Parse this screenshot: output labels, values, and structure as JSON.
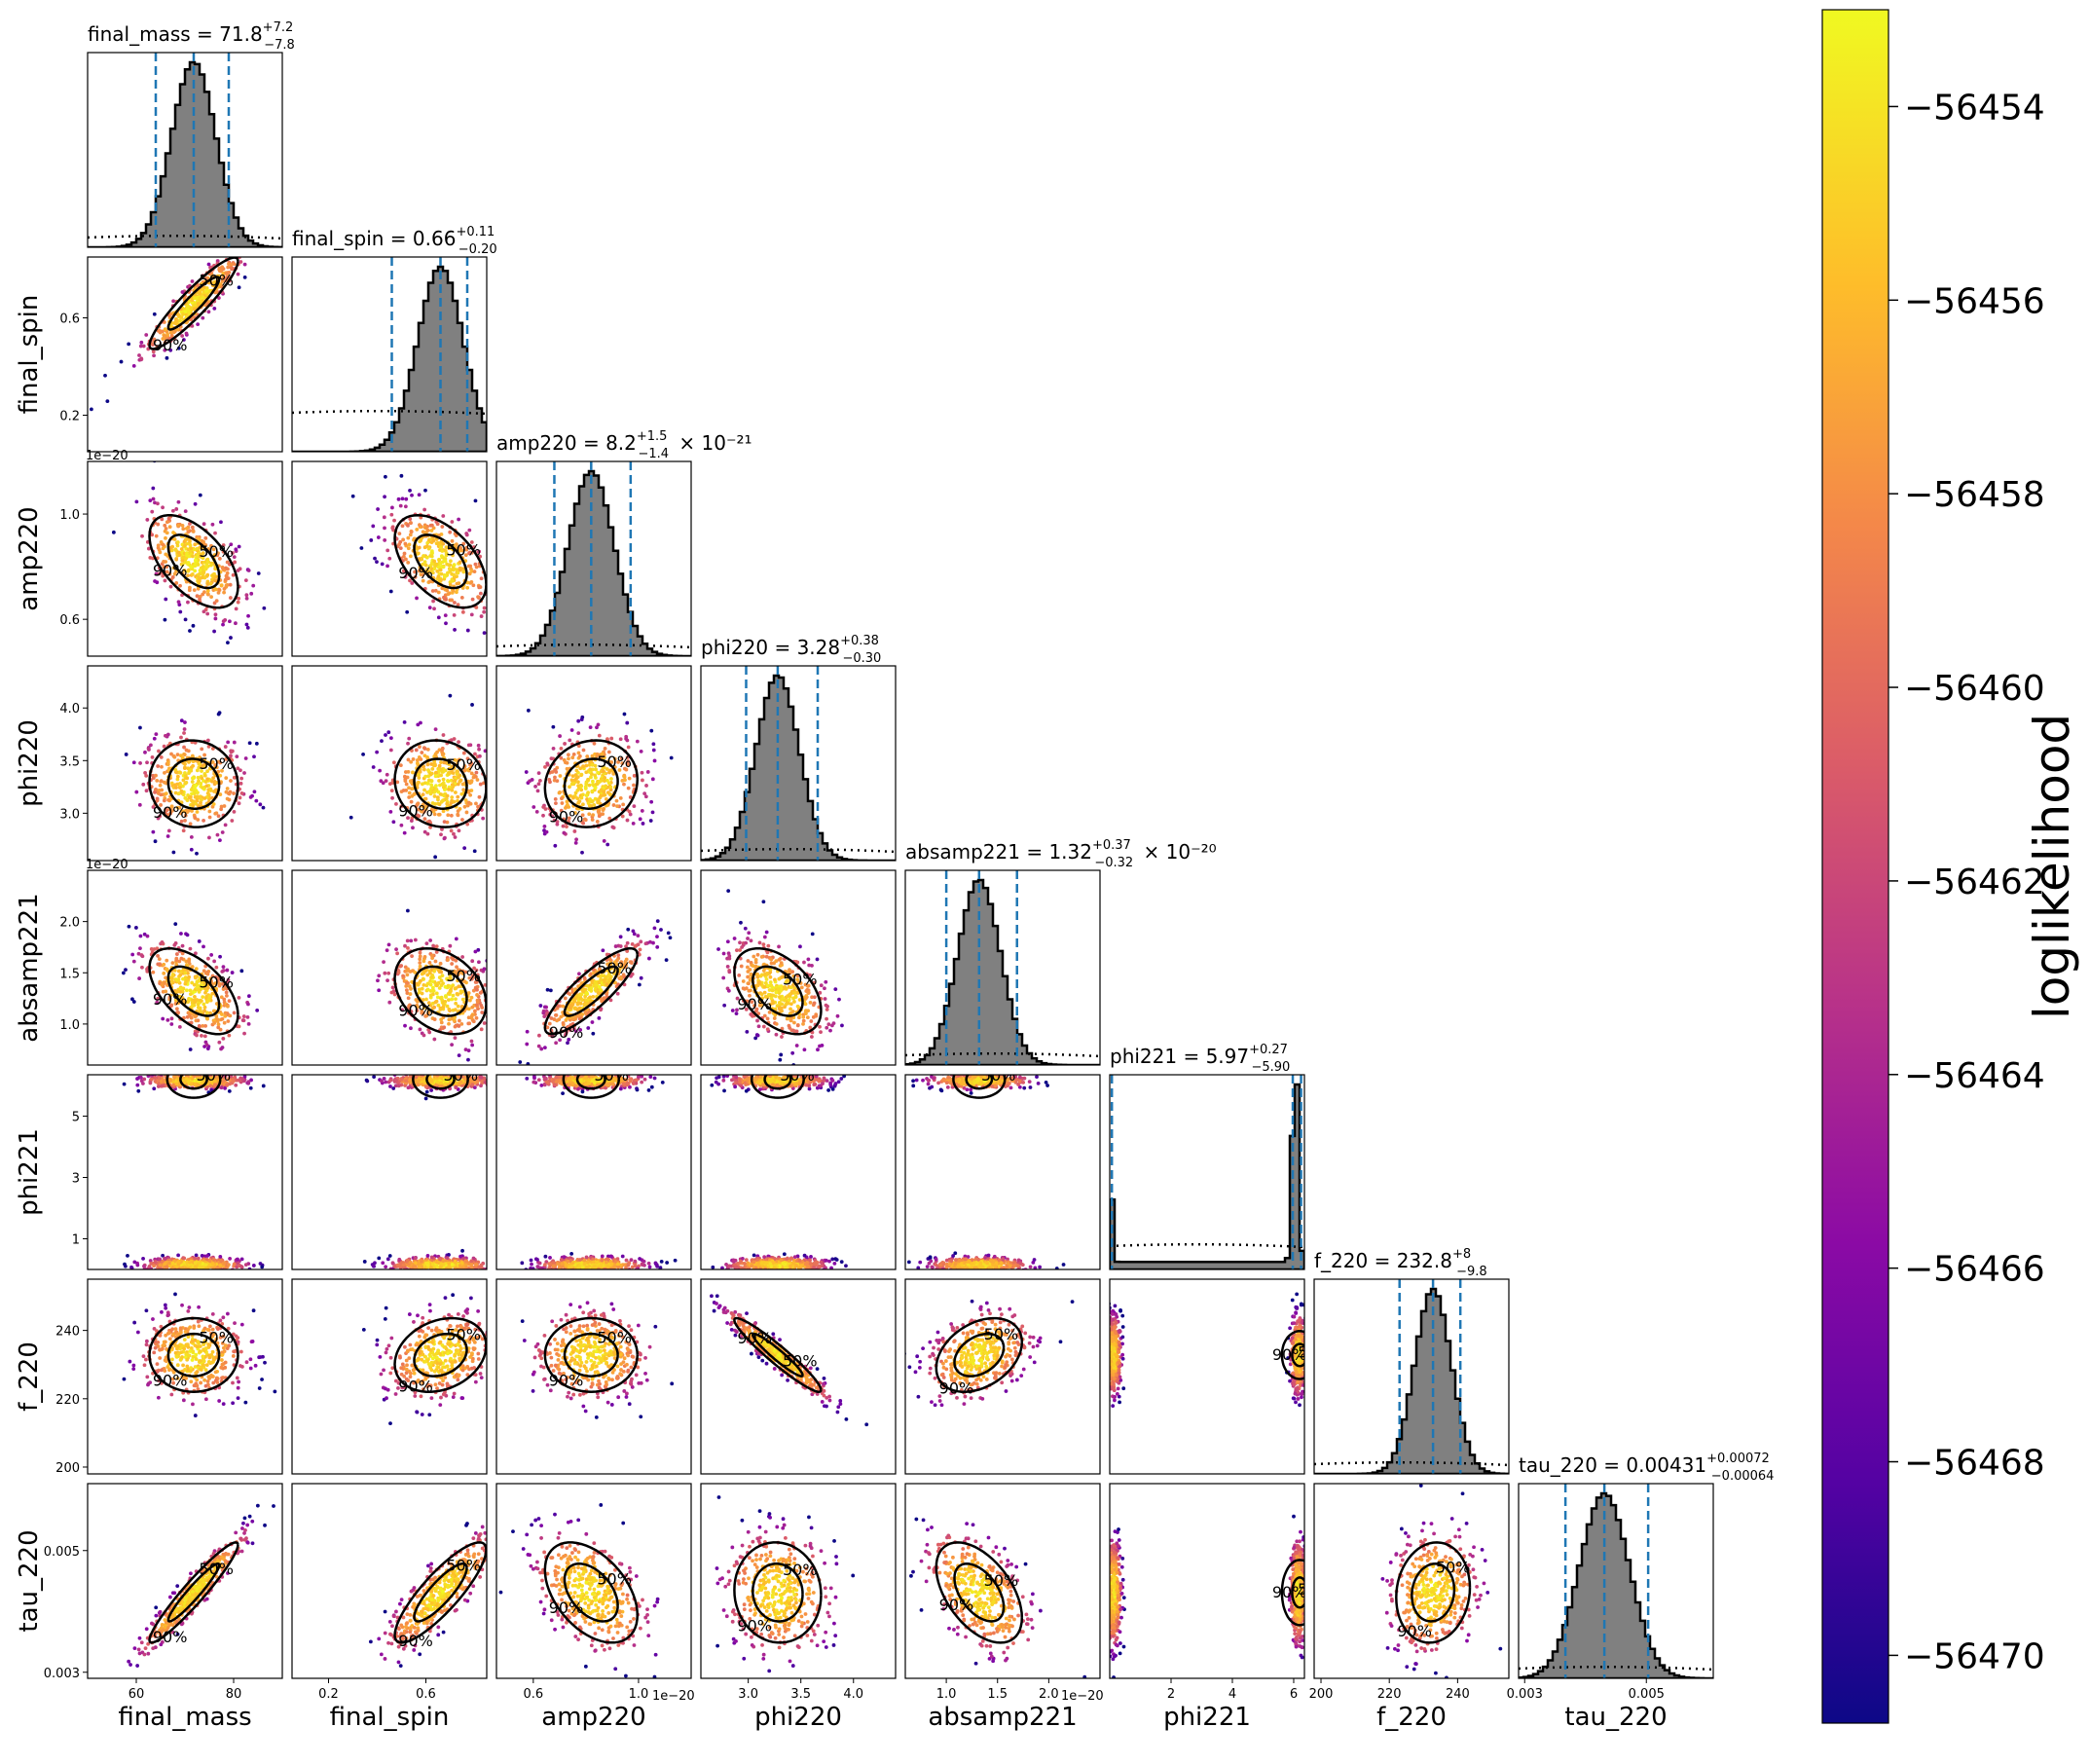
{
  "chart_data": {
    "type": "scatter",
    "kind": "corner-plot",
    "colorbar": {
      "label": "loglikelihood",
      "colormap": "plasma",
      "range": [
        -56470.7,
        -56453.0
      ],
      "ticks": [
        "−56454",
        "−56456",
        "−56458",
        "−56460",
        "−56462",
        "−56464",
        "−56466",
        "−56468",
        "−56470"
      ]
    },
    "contour_levels": [
      "50%",
      "90%"
    ],
    "params": [
      {
        "key": "final_mass",
        "label": "final_mass",
        "title": {
          "name": "final_mass",
          "median": "71.8",
          "plus": "+7.2",
          "minus": "−7.8",
          "factor": ""
        },
        "range": [
          50,
          90
        ],
        "median": 71.8,
        "lo": 64.0,
        "hi": 79.0,
        "ticks": [
          60,
          80
        ],
        "tick_labels": [
          "60",
          "80"
        ],
        "offset": ""
      },
      {
        "key": "final_spin",
        "label": "final_spin",
        "title": {
          "name": "final_spin",
          "median": "0.66",
          "plus": "+0.11",
          "minus": "−0.20",
          "factor": ""
        },
        "range": [
          0.05,
          0.85
        ],
        "median": 0.66,
        "lo": 0.46,
        "hi": 0.77,
        "ticks": [
          0.2,
          0.6
        ],
        "tick_labels": [
          "0.2",
          "0.6"
        ],
        "offset": ""
      },
      {
        "key": "amp220",
        "label": "amp220",
        "title": {
          "name": "amp220",
          "median": "8.2",
          "plus": "+1.5",
          "minus": "−1.4",
          "factor": "× 10⁻²¹"
        },
        "range": [
          0.46,
          1.2
        ],
        "median": 0.82,
        "lo": 0.68,
        "hi": 0.97,
        "ticks": [
          0.6,
          1.0
        ],
        "tick_labels": [
          "0.6",
          "1.0"
        ],
        "offset": "1e−20"
      },
      {
        "key": "phi220",
        "label": "phi220",
        "title": {
          "name": "phi220",
          "median": "3.28",
          "plus": "+0.38",
          "minus": "−0.30",
          "factor": ""
        },
        "range": [
          2.55,
          4.4
        ],
        "median": 3.28,
        "lo": 2.98,
        "hi": 3.66,
        "ticks": [
          3.0,
          3.5,
          4.0
        ],
        "tick_labels": [
          "3.0",
          "3.5",
          "4.0"
        ],
        "offset": ""
      },
      {
        "key": "absamp221",
        "label": "absamp221",
        "title": {
          "name": "absamp221",
          "median": "1.32",
          "plus": "+0.37",
          "minus": "−0.32",
          "factor": "× 10⁻²⁰"
        },
        "range": [
          0.6,
          2.5
        ],
        "median": 1.32,
        "lo": 1.0,
        "hi": 1.69,
        "ticks": [
          1.0,
          1.5,
          2.0
        ],
        "tick_labels": [
          "1.0",
          "1.5",
          "2.0"
        ],
        "offset": "1e−20"
      },
      {
        "key": "phi221",
        "label": "phi221",
        "title": {
          "name": "phi221",
          "median": "5.97",
          "plus": "+0.27",
          "minus": "−5.90",
          "factor": ""
        },
        "range": [
          0,
          6.35
        ],
        "median": 5.97,
        "lo": 0.07,
        "hi": 6.24,
        "ticks": [
          1,
          3,
          5
        ],
        "xticks": [
          2,
          4,
          6
        ],
        "tick_labels": [
          "1",
          "3",
          "5"
        ],
        "xtick_labels": [
          "2",
          "4",
          "6"
        ],
        "offset": ""
      },
      {
        "key": "f_220",
        "label": "f_220",
        "title": {
          "name": "f_220",
          "median": "232.8",
          "plus": "+8",
          "minus": "−9.8",
          "factor": ""
        },
        "range": [
          198,
          255
        ],
        "median": 232.8,
        "lo": 223.0,
        "hi": 240.8,
        "ticks": [
          200,
          220,
          240
        ],
        "tick_labels": [
          "200",
          "220",
          "240"
        ],
        "offset": ""
      },
      {
        "key": "tau_220",
        "label": "tau_220",
        "title": {
          "name": "tau_220",
          "median": "0.00431",
          "plus": "+0.00072",
          "minus": "−0.00064",
          "factor": ""
        },
        "range": [
          0.0029,
          0.0061
        ],
        "median": 0.00431,
        "lo": 0.00367,
        "hi": 0.00503,
        "ticks": [
          0.003,
          0.005
        ],
        "tick_labels": [
          "0.003",
          "0.005"
        ],
        "offset": ""
      }
    ],
    "correlations": {
      "1-0": 0.92,
      "2-0": -0.55,
      "2-1": -0.5,
      "3-0": -0.05,
      "3-1": -0.1,
      "3-2": 0.1,
      "4-0": -0.55,
      "4-1": -0.3,
      "4-2": 0.85,
      "4-3": -0.45,
      "6-0": 0.0,
      "6-1": 0.25,
      "6-2": 0.0,
      "6-3": -0.95,
      "6-4": 0.35,
      "6-5": 0.0,
      "7-0": 0.95,
      "7-1": 0.85,
      "7-2": -0.45,
      "7-3": -0.05,
      "7-4": -0.5,
      "7-5": 0.0,
      "7-6": 0.1
    }
  }
}
